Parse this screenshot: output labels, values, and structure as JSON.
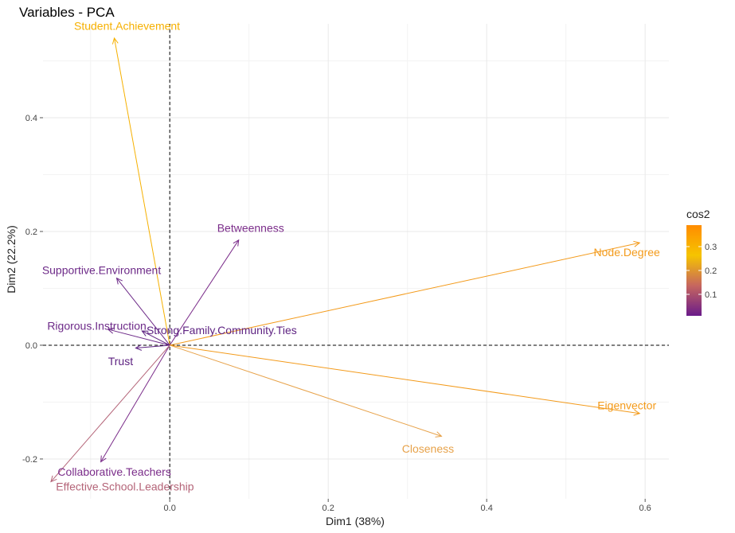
{
  "chart_data": {
    "type": "scatter",
    "subtype": "pca-variable-arrows",
    "title": "Variables - PCA",
    "xlabel": "Dim1 (38%)",
    "ylabel": "Dim2 (22.2%)",
    "xlim": [
      -0.16,
      0.63
    ],
    "ylim": [
      -0.27,
      0.565
    ],
    "x_ticks": [
      0.0,
      0.2,
      0.4,
      0.6
    ],
    "x_tick_labels": [
      "0.0",
      "0.2",
      "0.4",
      "0.6"
    ],
    "y_ticks": [
      -0.2,
      0.0,
      0.2,
      0.4
    ],
    "y_tick_labels": [
      "-0.2",
      "0.0",
      "0.2",
      "0.4"
    ],
    "grid": true,
    "reference_lines": {
      "x": 0,
      "y": 0,
      "style": "dashed"
    },
    "color_variable": "cos2",
    "legend": {
      "title": "cos2",
      "position": "right",
      "range": [
        0.01,
        0.39
      ],
      "ticks": [
        0.1,
        0.2,
        0.3
      ],
      "tick_labels": [
        "0.1",
        "0.2",
        "0.3"
      ],
      "gradient_colors": [
        "#6a1b8a",
        "#c6665f",
        "#f6c400",
        "#ff8c00"
      ]
    },
    "variables": [
      {
        "name": "Student.Achievement",
        "x": -0.07,
        "y": 0.54,
        "cos2": 0.3,
        "color": "#f6b000"
      },
      {
        "name": "Betweenness",
        "x": 0.087,
        "y": 0.185,
        "cos2": 0.05,
        "color": "#7b2d8a"
      },
      {
        "name": "Node.Degree",
        "x": 0.593,
        "y": 0.18,
        "cos2": 0.36,
        "color": "#f39a1a"
      },
      {
        "name": "Supportive.Environment",
        "x": -0.067,
        "y": 0.118,
        "cos2": 0.03,
        "color": "#6d2a88"
      },
      {
        "name": "Rigorous.Instruction",
        "x": -0.078,
        "y": 0.028,
        "cos2": 0.03,
        "color": "#6d2a88"
      },
      {
        "name": "Strong.Family.Community.Ties",
        "x": -0.035,
        "y": 0.025,
        "cos2": 0.01,
        "color": "#5e2382"
      },
      {
        "name": "Trust",
        "x": -0.043,
        "y": -0.005,
        "cos2": 0.01,
        "color": "#5e2382"
      },
      {
        "name": "Eigenvector",
        "x": 0.593,
        "y": -0.12,
        "cos2": 0.35,
        "color": "#f39a1a"
      },
      {
        "name": "Closeness",
        "x": 0.343,
        "y": -0.16,
        "cos2": 0.22,
        "color": "#e7a24a"
      },
      {
        "name": "Collaborative.Teachers",
        "x": -0.087,
        "y": -0.205,
        "cos2": 0.05,
        "color": "#7b2d8a"
      },
      {
        "name": "Effective.School.Leadership",
        "x": -0.15,
        "y": -0.24,
        "cos2": 0.09,
        "color": "#b46478"
      }
    ]
  }
}
